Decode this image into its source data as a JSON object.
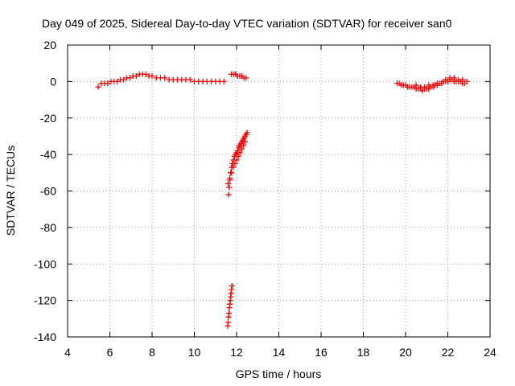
{
  "chart_data": {
    "type": "scatter",
    "title": "Day 049 of 2025, Sidereal Day-to-day VTEC variation (SDTVAR) for receiver san0",
    "xlabel": "GPS time / hours",
    "ylabel": "SDTVAR / TECUs",
    "xlim": [
      4,
      24
    ],
    "ylim": [
      -140,
      20
    ],
    "xticks": [
      4,
      6,
      8,
      10,
      12,
      14,
      16,
      18,
      20,
      22,
      24
    ],
    "yticks": [
      20,
      0,
      -20,
      -40,
      -60,
      -80,
      -100,
      -120,
      -140
    ],
    "grid": true,
    "legend": "none",
    "marker": "+",
    "color": "#ff0000",
    "series": [
      {
        "x": [
          5.45,
          5.6,
          5.75,
          5.9,
          6.05,
          6.2,
          6.35,
          6.5,
          6.65,
          6.8,
          6.95,
          7.1,
          7.25,
          7.4,
          7.55,
          7.7,
          7.85,
          8.0,
          8.2,
          8.4,
          8.6,
          8.8,
          9.0,
          9.2,
          9.4,
          9.6,
          9.8,
          10.0,
          10.2,
          10.4,
          10.6,
          10.8,
          11.0,
          11.2,
          11.4
        ],
        "y": [
          -3,
          -1,
          -1,
          -1,
          0,
          0,
          0,
          1,
          1,
          2,
          2,
          3,
          3,
          4,
          4,
          4,
          3,
          3,
          2,
          2,
          2,
          1,
          1,
          1,
          1,
          1,
          1,
          0,
          0,
          0,
          0,
          0,
          0,
          0,
          0
        ]
      },
      {
        "x": [
          11.75,
          11.85,
          11.95,
          12.05,
          12.15,
          12.25,
          12.35,
          12.45
        ],
        "y": [
          4,
          4,
          4,
          3,
          3,
          3,
          2,
          2
        ]
      },
      {
        "x": [
          11.62,
          11.65,
          11.68,
          11.72,
          11.76,
          11.8,
          11.85,
          11.9,
          11.95,
          12.0,
          12.05,
          12.1,
          12.15,
          12.2,
          12.25,
          12.3,
          12.35,
          12.4,
          12.45,
          12.5
        ],
        "y": [
          -62,
          -58,
          -54,
          -50,
          -47,
          -45,
          -43,
          -41,
          -40,
          -39,
          -38,
          -36,
          -35,
          -34,
          -33,
          -32,
          -31,
          -30,
          -29,
          -28
        ]
      },
      {
        "x": [
          11.6,
          11.68,
          11.76,
          11.84,
          11.92,
          12.0,
          12.08,
          12.16,
          12.24,
          12.32,
          12.4
        ],
        "y": [
          -56,
          -53,
          -50,
          -47,
          -45,
          -43,
          -41,
          -39,
          -37,
          -35,
          -33
        ]
      },
      {
        "x": [
          11.58,
          11.6,
          11.62,
          11.64,
          11.66,
          11.68,
          11.7,
          11.72,
          11.74,
          11.76,
          11.78
        ],
        "y": [
          -134,
          -132,
          -129,
          -127,
          -124,
          -122,
          -120,
          -118,
          -116,
          -114,
          -112
        ]
      },
      {
        "x": [
          19.6,
          19.7,
          19.8,
          19.9,
          20.0,
          20.1,
          20.2,
          20.3,
          20.4,
          20.5,
          20.6,
          20.7,
          20.8,
          20.9,
          21.0,
          21.1,
          21.2,
          21.3,
          21.4,
          21.5,
          21.6,
          21.7,
          21.8,
          21.9,
          22.0,
          22.1,
          22.2,
          22.3,
          22.4,
          22.5,
          22.6,
          22.7,
          22.8,
          22.9
        ],
        "y": [
          -1,
          -1,
          -2,
          -2,
          -2,
          -3,
          -3,
          -3,
          -3,
          -4,
          -4,
          -4,
          -5,
          -4,
          -4,
          -4,
          -3,
          -3,
          -2,
          -2,
          -1,
          -1,
          0,
          0,
          0,
          1,
          1,
          0,
          0,
          0,
          0,
          -1,
          -1,
          0
        ]
      },
      {
        "x": [
          20.5,
          20.7,
          20.9,
          21.1,
          21.3,
          21.5,
          21.7,
          21.9,
          22.1,
          22.3,
          22.5,
          22.7
        ],
        "y": [
          -2,
          -3,
          -3,
          -2,
          -2,
          -1,
          -1,
          1,
          2,
          2,
          1,
          1
        ]
      }
    ]
  }
}
